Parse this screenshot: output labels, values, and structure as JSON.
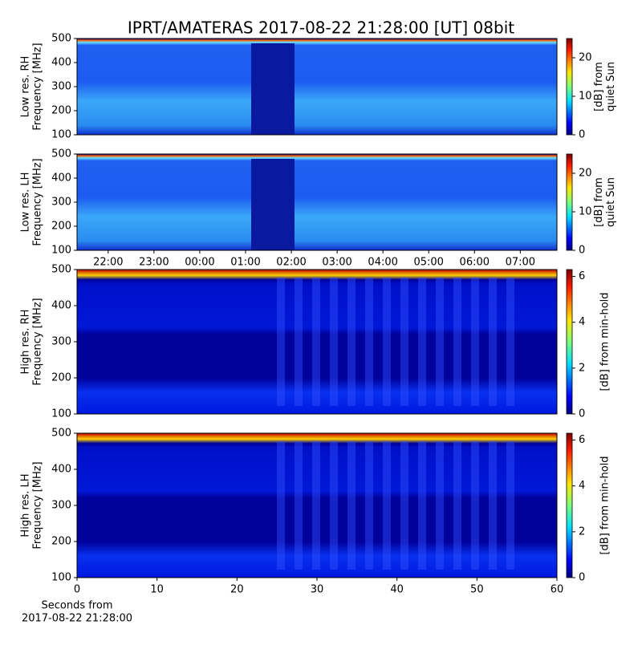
{
  "chart_data": [
    {
      "type": "heatmap",
      "title": "IPRT/AMATERAS 2017-08-22 21:28:00 [UT]   08bit",
      "ylabel": [
        "Low res. RH",
        "Frequency [MHz]"
      ],
      "ylim": [
        100,
        500
      ],
      "yticks": [
        100,
        200,
        300,
        400,
        500
      ],
      "xlim": [
        21.32,
        31.8
      ],
      "clabel": [
        "[dB] from",
        "quiet Sun"
      ],
      "clim": [
        0,
        25
      ],
      "cticks": [
        0,
        10,
        20
      ]
    },
    {
      "type": "heatmap",
      "ylabel": [
        "Low res. LH",
        "Frequency [MHz]"
      ],
      "ylim": [
        100,
        500
      ],
      "yticks": [
        100,
        200,
        300,
        400,
        500
      ],
      "xlim": [
        21.32,
        31.8
      ],
      "xticks": [
        {
          "value": 22,
          "label": "22:00"
        },
        {
          "value": 23,
          "label": "23:00"
        },
        {
          "value": 24,
          "label": "00:00"
        },
        {
          "value": 25,
          "label": "01:00"
        },
        {
          "value": 26,
          "label": "02:00"
        },
        {
          "value": 27,
          "label": "03:00"
        },
        {
          "value": 28,
          "label": "04:00"
        },
        {
          "value": 29,
          "label": "05:00"
        },
        {
          "value": 30,
          "label": "06:00"
        },
        {
          "value": 31,
          "label": "07:00"
        }
      ],
      "clabel": [
        "[dB] from",
        "quiet Sun"
      ],
      "clim": [
        0,
        25
      ],
      "cticks": [
        0,
        10,
        20
      ]
    },
    {
      "type": "heatmap",
      "ylabel": [
        "High res. RH",
        "Frequency [MHz]"
      ],
      "ylim": [
        100,
        500
      ],
      "yticks": [
        100,
        200,
        300,
        400,
        500
      ],
      "xlim": [
        0,
        60
      ],
      "clabel": [
        "[dB] from min-hold"
      ],
      "clim": [
        0,
        6.3
      ],
      "cticks": [
        0,
        2,
        4,
        6
      ]
    },
    {
      "type": "heatmap",
      "ylabel": [
        "High res. LH",
        "Frequency [MHz]"
      ],
      "ylim": [
        100,
        500
      ],
      "yticks": [
        100,
        200,
        300,
        400,
        500
      ],
      "xlim": [
        0,
        60
      ],
      "xticks": [
        0,
        10,
        20,
        30,
        40,
        50,
        60
      ],
      "xlabel": [
        "Seconds from",
        "2017-08-22 21:28:00"
      ],
      "clabel": [
        "[dB] from min-hold"
      ],
      "clim": [
        0,
        6.3
      ],
      "cticks": [
        0,
        2,
        4,
        6
      ]
    }
  ]
}
